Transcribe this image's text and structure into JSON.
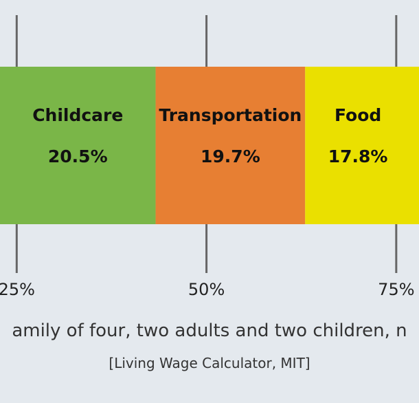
{
  "chart_data": {
    "type": "bar",
    "orientation": "horizontal-stacked",
    "segments": [
      {
        "label": "Childcare",
        "value_label": "20.5%",
        "value": 20.5,
        "color": "#7ab648"
      },
      {
        "label": "Transportation",
        "value_label": "19.7%",
        "value": 19.7,
        "color": "#e77f33"
      },
      {
        "label": "Food",
        "value_label": "17.8%",
        "value": 17.8,
        "color": "#eae000"
      }
    ],
    "ticks": [
      {
        "value": 25,
        "label": "25%"
      },
      {
        "value": 50,
        "label": "50%"
      },
      {
        "value": 75,
        "label": "75%"
      }
    ],
    "xlim": [
      22.8,
      78
    ],
    "grid": false,
    "caption": "amily of four, two adults and two children, n",
    "source": "[Living Wage Calculator, MIT]"
  }
}
